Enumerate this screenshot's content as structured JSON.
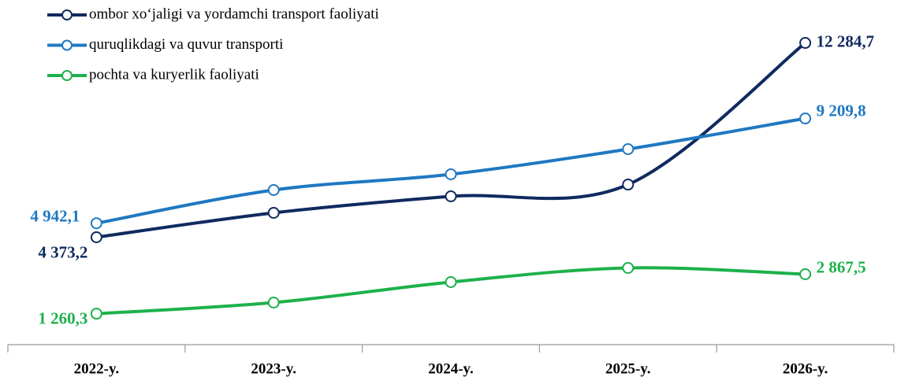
{
  "chart_data": {
    "type": "line",
    "categories": [
      "2022-y.",
      "2023-y.",
      "2024-y.",
      "2025-y.",
      "2026-y."
    ],
    "ylim": [
      0,
      14000
    ],
    "legend": "top-left",
    "series": [
      {
        "name": "ombor xo‘jaligi va yordamchi transport faoliyati",
        "color": "#0f2a5f",
        "values": [
          4373.2,
          5366,
          6039,
          6519,
          12284.7
        ],
        "value_labels": [
          "4 373,2",
          null,
          null,
          null,
          "12 284,7"
        ]
      },
      {
        "name": "quruqlikdagi va quvur transporti",
        "color": "#1f78c1",
        "values": [
          4942.1,
          6295,
          6936,
          7961,
          9209.8
        ],
        "value_labels": [
          "4 942,1",
          null,
          null,
          null,
          "9 209,8"
        ]
      },
      {
        "name": "pochta va kuryerlik faoliyati",
        "color": "#1db14b",
        "values": [
          1260.3,
          1714,
          2547,
          3124,
          2867.5
        ],
        "value_labels": [
          "1 260,3",
          null,
          null,
          null,
          "2 867,5"
        ]
      }
    ]
  }
}
